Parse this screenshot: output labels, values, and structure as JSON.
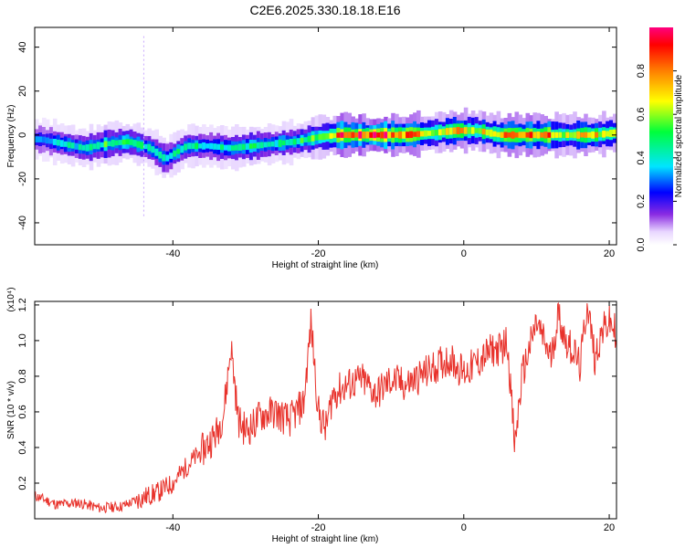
{
  "title": "C2E6.2025.330.18.18.E16",
  "chart_data": [
    {
      "type": "heatmap",
      "name": "spectrogram",
      "xlabel": "Height of straight line (km)",
      "ylabel": "Frequency (Hz)",
      "xlim": [
        -59,
        21
      ],
      "ylim": [
        -50,
        49
      ],
      "xticks": [
        -40,
        -20,
        0,
        20
      ],
      "yticks": [
        -40,
        -20,
        0,
        20,
        40
      ],
      "colorbar": {
        "label": "Normalized spectral amplitude",
        "range": [
          0,
          1
        ],
        "ticks": [
          "0.0",
          "0.2",
          "0.4",
          "0.6",
          "0.8"
        ]
      },
      "ridge": [
        {
          "x": -58,
          "f": -2,
          "a": 0.35
        },
        {
          "x": -55,
          "f": -4,
          "a": 0.45
        },
        {
          "x": -52,
          "f": -6,
          "a": 0.4
        },
        {
          "x": -49,
          "f": -4,
          "a": 0.55
        },
        {
          "x": -46,
          "f": -3,
          "a": 0.6
        },
        {
          "x": -43,
          "f": -6,
          "a": 0.45
        },
        {
          "x": -41,
          "f": -11,
          "a": 0.4
        },
        {
          "x": -38,
          "f": -5,
          "a": 0.5
        },
        {
          "x": -35,
          "f": -5,
          "a": 0.45
        },
        {
          "x": -32,
          "f": -6,
          "a": 0.45
        },
        {
          "x": -29,
          "f": -5,
          "a": 0.5
        },
        {
          "x": -26,
          "f": -4,
          "a": 0.45
        },
        {
          "x": -23,
          "f": -3,
          "a": 0.5
        },
        {
          "x": -20,
          "f": -1,
          "a": 0.6
        },
        {
          "x": -17,
          "f": 0,
          "a": 0.9
        },
        {
          "x": -12,
          "f": 0,
          "a": 0.95
        },
        {
          "x": -8,
          "f": 0,
          "a": 0.9
        },
        {
          "x": -4,
          "f": 1,
          "a": 0.7
        },
        {
          "x": -1,
          "f": 2,
          "a": 0.75
        },
        {
          "x": 2,
          "f": 2,
          "a": 0.7
        },
        {
          "x": 5,
          "f": 0,
          "a": 0.8
        },
        {
          "x": 8,
          "f": 0,
          "a": 0.85
        },
        {
          "x": 11,
          "f": 0,
          "a": 0.9
        },
        {
          "x": 14,
          "f": 0,
          "a": 0.7
        },
        {
          "x": 18,
          "f": 0,
          "a": 0.75
        },
        {
          "x": 21,
          "f": 1,
          "a": 0.6
        }
      ]
    },
    {
      "type": "line",
      "name": "snr",
      "xlabel": "Height of straight line (km)",
      "ylabel": "SNR (10 * v/v)",
      "scale_note": "(x10⁴)",
      "xlim": [
        -59,
        21
      ],
      "ylim": [
        0,
        1.22
      ],
      "xticks": [
        -40,
        -20,
        0,
        20
      ],
      "yticks": [
        0.2,
        0.4,
        0.6,
        0.8,
        1.0,
        1.2
      ],
      "color": "#e8322b",
      "series": [
        {
          "name": "SNR",
          "x": [
            -59,
            -56,
            -53,
            -50,
            -47,
            -44,
            -42,
            -40,
            -38,
            -36,
            -34,
            -33,
            -32,
            -31,
            -30,
            -29,
            -28,
            -26,
            -24,
            -22,
            -21,
            -20,
            -19,
            -18,
            -16,
            -14,
            -12,
            -10,
            -8,
            -6,
            -4,
            -2,
            0,
            2,
            4,
            5,
            6,
            7,
            8,
            9,
            10,
            12,
            13,
            14,
            15,
            16,
            17,
            18,
            19,
            20,
            21
          ],
          "y": [
            0.13,
            0.08,
            0.09,
            0.06,
            0.07,
            0.12,
            0.15,
            0.2,
            0.3,
            0.38,
            0.48,
            0.6,
            0.97,
            0.55,
            0.5,
            0.52,
            0.58,
            0.6,
            0.55,
            0.65,
            1.1,
            0.6,
            0.5,
            0.7,
            0.75,
            0.78,
            0.7,
            0.78,
            0.75,
            0.8,
            0.85,
            0.9,
            0.82,
            0.88,
            0.95,
            0.95,
            1.0,
            0.4,
            0.8,
            0.95,
            1.1,
            0.9,
            1.15,
            1.0,
            0.95,
            0.85,
            1.22,
            0.9,
            1.05,
            1.1,
            1.05
          ]
        }
      ]
    }
  ]
}
